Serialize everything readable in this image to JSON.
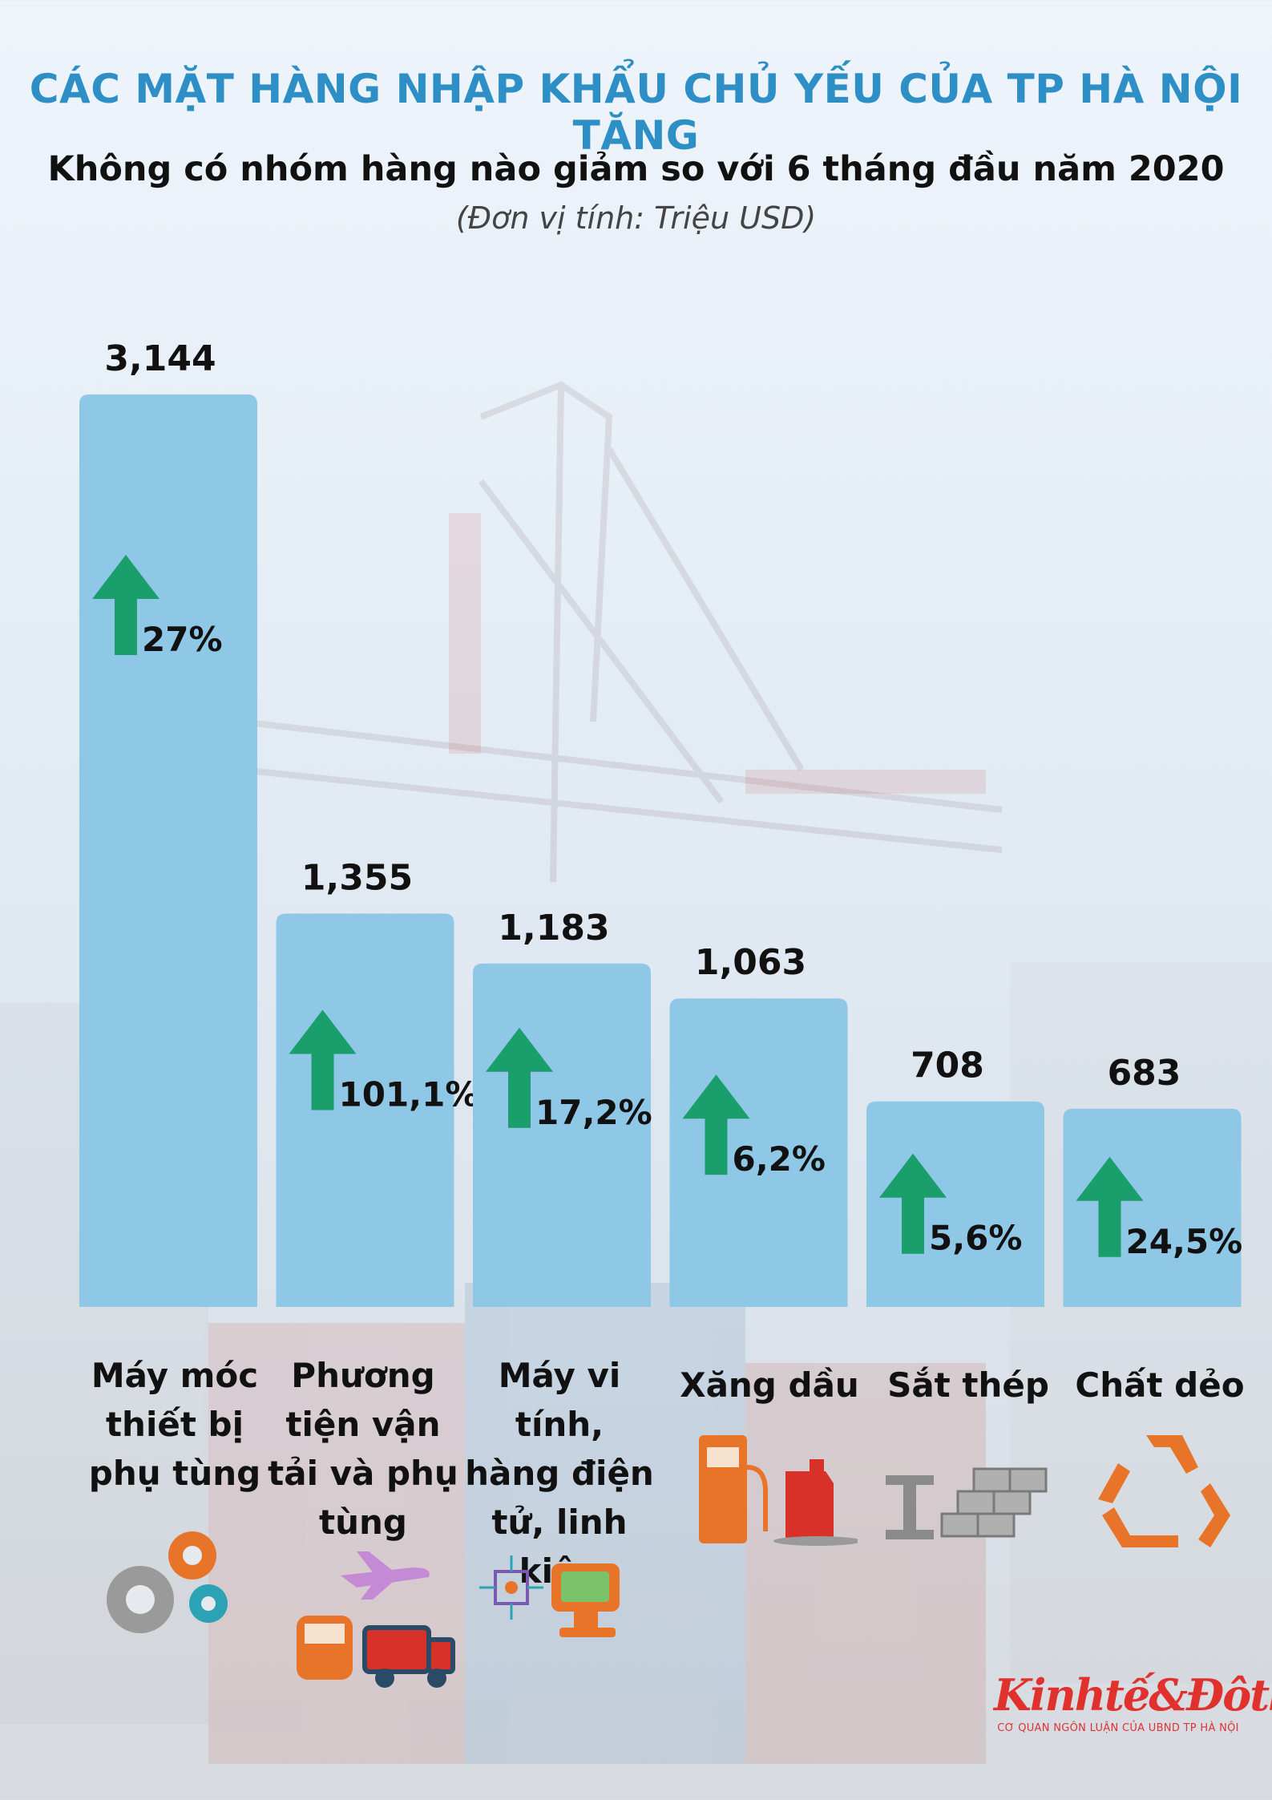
{
  "header": {
    "title": "CÁC MẶT HÀNG NHẬP KHẨU CHỦ YẾU CỦA TP HÀ NỘI TĂNG",
    "subtitle": "Không có nhóm hàng nào giảm so với 6 tháng đầu năm 2020",
    "unit": "(Đơn vị tính: Triệu USD)"
  },
  "chart_data": {
    "type": "bar",
    "categories": [
      "Máy móc thiết bị phụ tùng",
      "Phương tiện vận tải và phụ tùng",
      "Máy vi tính, hàng điện tử, linh kiện",
      "Xăng dầu",
      "Sắt thép",
      "Chất dẻo"
    ],
    "values": [
      3144,
      1355,
      1183,
      1063,
      708,
      683
    ],
    "value_labels": [
      "3,144",
      "1,355",
      "1,183",
      "1,063",
      "708",
      "683"
    ],
    "growth_labels": [
      "27%",
      "101,1%",
      "17,2%",
      "6,2%",
      "5,6%",
      "24,5%"
    ],
    "growth_direction": [
      "up",
      "up",
      "up",
      "up",
      "up",
      "up"
    ],
    "bar_color": "#8ec8e6",
    "arrow_color": "#1a9e6b",
    "grid": false
  },
  "category_labels": [
    "Máy móc thiết bị phụ tùng",
    "Phương tiện vận tải và phụ tùng",
    "Máy vi tính, hàng điện tử, linh kiện",
    "Xăng dầu",
    "Sắt thép",
    "Chất dẻo"
  ],
  "icons": [
    "gears-icon",
    "plane-train-truck-icon",
    "computer-chip-icon",
    "fuel-pump-canister-icon",
    "steel-beam-bricks-icon",
    "recycle-icon"
  ],
  "logo": {
    "name": "Kinhtế&Đôthị",
    "tagline": "CƠ QUAN NGÔN LUẬN CỦA UBND TP HÀ NỘI"
  },
  "colors": {
    "title": "#2d8fc6",
    "icon_orange": "#e8742a",
    "icon_gray": "#9a9a9a",
    "icon_teal": "#2ba3b5",
    "icon_red": "#d8312a",
    "icon_purple": "#c58ad6"
  }
}
